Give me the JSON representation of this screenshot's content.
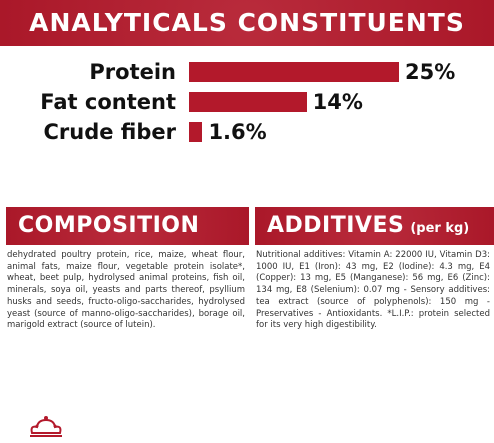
{
  "header": {
    "title": "ANALYTICALS CONSTITUENTS"
  },
  "nutrients": [
    {
      "label": "Protein",
      "value_text": "25%",
      "value": 25
    },
    {
      "label": "Fat content",
      "value_text": "14%",
      "value": 14
    },
    {
      "label": "Crude fiber",
      "value_text": "1.6%",
      "value": 1.6
    }
  ],
  "composition": {
    "title": "COMPOSITION",
    "text": "dehydrated poultry protein, rice, maize, wheat flour, animal fats, maize flour, vegetable protein isolate*, wheat, beet pulp, hydrolysed animal proteins, fish oil, minerals, soya oil, yeasts and parts thereof, psyllium husks and seeds, fructo-oligo-saccharides, hydrolysed yeast (source of manno-oligo-saccharides), borage oil, marigold extract (source of lutein)."
  },
  "additives": {
    "title": "ADDITIVES",
    "subtitle": "(per kg)",
    "text": "Nutritional additives: Vitamin A: 22000 IU, Vitamin D3: 1000 IU, E1 (Iron): 43 mg, E2 (Iodine): 4.3 mg, E4 (Copper): 13 mg, E5 (Manganese): 56 mg, E6 (Zinc): 134 mg, E8 (Selenium): 0.07 mg - Sensory additives: tea extract (source of polyphenols): 150 mg - Preservatives - Antioxidants. *L.I.P.: protein selected for its very high digestibility."
  },
  "colors": {
    "brand_red": "#b3192b",
    "text": "#222222"
  },
  "logo": {
    "icon": "crown-icon"
  }
}
